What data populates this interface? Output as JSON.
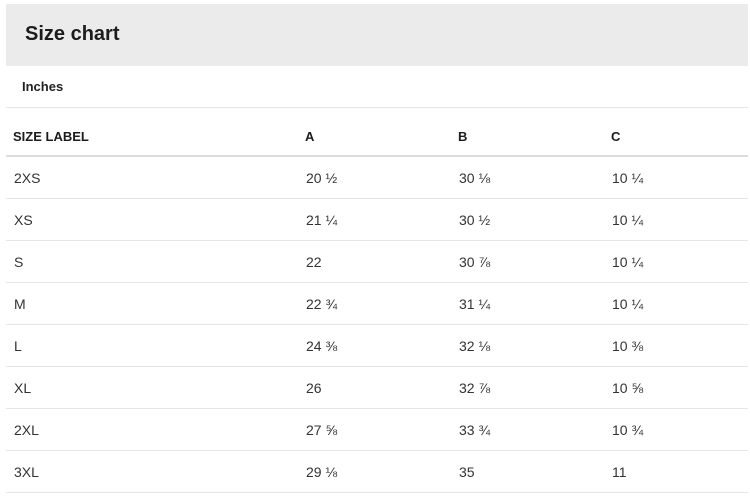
{
  "title": "Size chart",
  "unit": "Inches",
  "table": {
    "headers": [
      "SIZE LABEL",
      "A",
      "B",
      "C"
    ],
    "rows": [
      [
        "2XS",
        "20 ½",
        "30 ⅛",
        "10 ¼"
      ],
      [
        "XS",
        "21 ¼",
        "30 ½",
        "10 ¼"
      ],
      [
        "S",
        "22",
        "30 ⅞",
        "10 ¼"
      ],
      [
        "M",
        "22 ¾",
        "31 ¼",
        "10 ¼"
      ],
      [
        "L",
        "24 ⅜",
        "32 ⅛",
        "10 ⅜"
      ],
      [
        "XL",
        "26",
        "32 ⅞",
        "10 ⅝"
      ],
      [
        "2XL",
        "27 ⅝",
        "33 ¾",
        "10 ¾"
      ],
      [
        "3XL",
        "29 ⅛",
        "35",
        "11"
      ]
    ]
  }
}
